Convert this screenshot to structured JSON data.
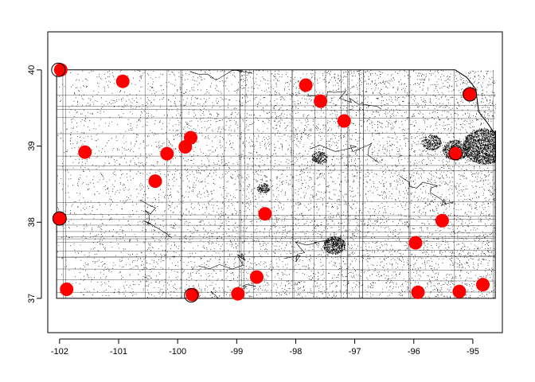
{
  "chart_data": {
    "type": "scatter",
    "title": "",
    "xlabel": "",
    "ylabel": "",
    "xlim": [
      -102.2,
      -94.5
    ],
    "ylim": [
      36.55,
      40.5
    ],
    "x_ticks": [
      -102,
      -101,
      -100,
      -99,
      -98,
      -97,
      -96,
      -95
    ],
    "y_ticks": [
      37,
      38,
      39,
      40
    ],
    "grid": false,
    "legend": "none",
    "state_outline": [
      [
        -102.05,
        40.0
      ],
      [
        -95.3,
        40.0
      ],
      [
        -95.1,
        39.9
      ],
      [
        -94.95,
        39.75
      ],
      [
        -94.9,
        39.45
      ],
      [
        -94.75,
        39.3
      ],
      [
        -94.62,
        39.15
      ],
      [
        -94.62,
        37.0
      ],
      [
        -102.05,
        37.0
      ]
    ],
    "series": [
      {
        "marker": "filled-circle",
        "color": "#ff0000",
        "points": [
          [
            -101.98,
            40.0
          ],
          [
            -100.93,
            39.85
          ],
          [
            -101.57,
            38.92
          ],
          [
            -100.18,
            38.9
          ],
          [
            -99.87,
            38.99
          ],
          [
            -99.78,
            39.11
          ],
          [
            -100.38,
            38.54
          ],
          [
            -102.0,
            38.05
          ],
          [
            -101.88,
            37.12
          ],
          [
            -99.75,
            37.05
          ],
          [
            -98.98,
            37.06
          ],
          [
            -98.66,
            37.28
          ],
          [
            -98.52,
            38.11
          ],
          [
            -97.83,
            39.8
          ],
          [
            -97.58,
            39.59
          ],
          [
            -97.18,
            39.33
          ],
          [
            -95.3,
            38.9
          ],
          [
            -95.06,
            39.68
          ],
          [
            -95.52,
            38.02
          ],
          [
            -95.97,
            37.73
          ],
          [
            -95.93,
            37.08
          ],
          [
            -95.23,
            37.09
          ],
          [
            -94.83,
            37.18
          ]
        ]
      },
      {
        "marker": "open-circle",
        "color": "#000000",
        "points": [
          [
            -102.02,
            40.0
          ],
          [
            -99.77,
            37.04
          ],
          [
            -95.05,
            39.68
          ],
          [
            -95.29,
            38.91
          ],
          [
            -102.0,
            38.05
          ]
        ]
      }
    ],
    "road_network_color": "#000000"
  }
}
